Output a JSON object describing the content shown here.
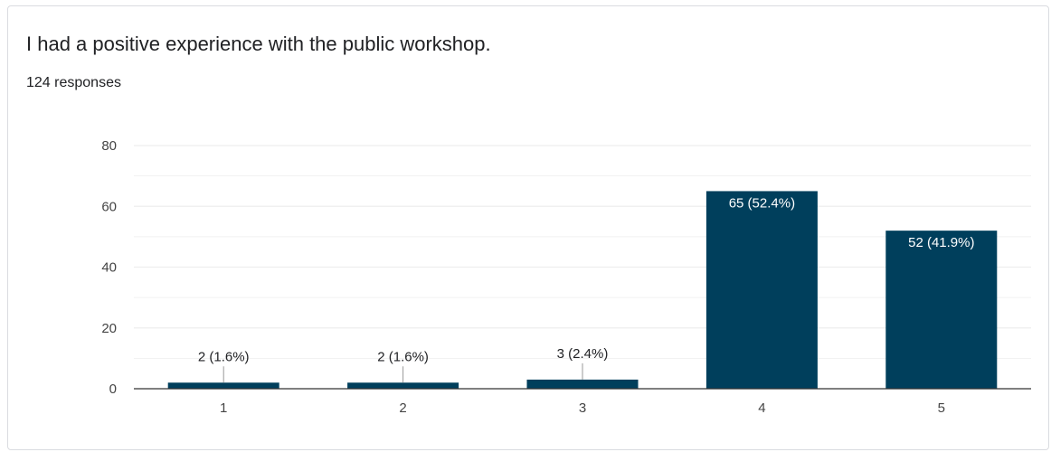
{
  "title": "I had a positive experience with the public workshop.",
  "subtitle": "124 responses",
  "colors": {
    "bar": "#003f5c",
    "grid": "#eeeeee",
    "axis": "#333333",
    "leader": "#999999"
  },
  "chart_data": {
    "type": "bar",
    "categories": [
      "1",
      "2",
      "3",
      "4",
      "5"
    ],
    "values": [
      2,
      2,
      3,
      65,
      52
    ],
    "data_labels": [
      "2 (1.6%)",
      "2 (1.6%)",
      "3 (2.4%)",
      "65 (52.4%)",
      "52 (41.9%)"
    ],
    "y_ticks": [
      "0",
      "20",
      "40",
      "60",
      "80"
    ],
    "ylim": [
      0,
      80
    ],
    "grid": true
  }
}
